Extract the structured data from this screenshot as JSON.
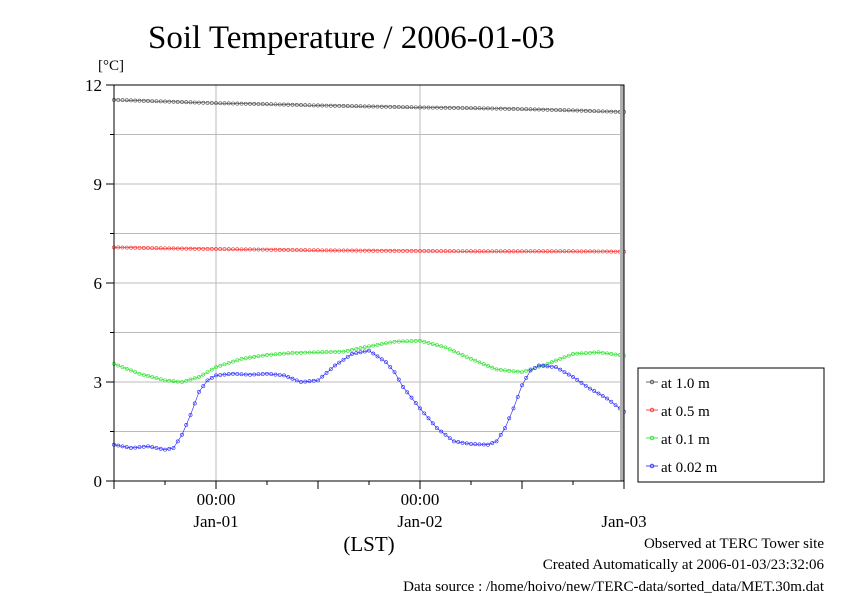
{
  "chart_data": {
    "type": "line",
    "title": "Soil Temperature / 2006-01-03",
    "ylabel": "[°C]",
    "xlabel": "(LST)",
    "ylim": [
      0,
      12
    ],
    "y_ticks": [
      0,
      3,
      6,
      9,
      12
    ],
    "x_time_labels": [
      "00:00",
      "00:00"
    ],
    "x_day_labels": [
      "Jan-01",
      "Jan-02",
      "Jan-03"
    ],
    "x_unit_note": "x values are hours from 2005-12-31 12:00 LST",
    "xlim": [
      0,
      60
    ],
    "grid": true,
    "legend_position": "right",
    "series": [
      {
        "name": "at 1.0 m",
        "color": "#444444",
        "x": [
          0,
          6,
          12,
          18,
          24,
          30,
          36,
          42,
          48,
          54,
          60
        ],
        "values": [
          11.55,
          11.5,
          11.45,
          11.42,
          11.38,
          11.35,
          11.32,
          11.3,
          11.27,
          11.23,
          11.18
        ]
      },
      {
        "name": "at 0.5 m",
        "color": "#ff2020",
        "x": [
          0,
          6,
          12,
          18,
          24,
          30,
          36,
          42,
          48,
          54,
          60
        ],
        "values": [
          7.08,
          7.05,
          7.03,
          7.01,
          6.99,
          6.98,
          6.97,
          6.96,
          6.96,
          6.96,
          6.95
        ]
      },
      {
        "name": "at 0.1 m",
        "color": "#20e020",
        "x": [
          0,
          3,
          6,
          8,
          10,
          12,
          15,
          18,
          21,
          24,
          27,
          30,
          33,
          36,
          39,
          42,
          45,
          48,
          51,
          54,
          57,
          60
        ],
        "values": [
          3.55,
          3.25,
          3.05,
          3.0,
          3.15,
          3.45,
          3.7,
          3.82,
          3.88,
          3.9,
          3.92,
          4.08,
          4.22,
          4.25,
          4.05,
          3.7,
          3.38,
          3.3,
          3.55,
          3.85,
          3.9,
          3.8
        ]
      },
      {
        "name": "at 0.02 m",
        "color": "#2020ff",
        "x": [
          0,
          2,
          4,
          6,
          7,
          8,
          9,
          10,
          11,
          12,
          14,
          16,
          18,
          20,
          22,
          24,
          26,
          28,
          30,
          32,
          33,
          34,
          36,
          38,
          40,
          42,
          44,
          45,
          46,
          47,
          48,
          49,
          50,
          52,
          54,
          56,
          58,
          60
        ],
        "values": [
          1.1,
          1.0,
          1.05,
          0.95,
          1.0,
          1.4,
          2.0,
          2.7,
          3.05,
          3.2,
          3.25,
          3.22,
          3.25,
          3.2,
          3.0,
          3.05,
          3.5,
          3.85,
          3.95,
          3.6,
          3.3,
          2.85,
          2.2,
          1.6,
          1.2,
          1.12,
          1.1,
          1.2,
          1.6,
          2.2,
          2.9,
          3.35,
          3.5,
          3.45,
          3.15,
          2.8,
          2.5,
          2.1
        ]
      }
    ]
  },
  "footer": {
    "observed": "Observed at TERC Tower site",
    "created": "Created Automatically at 2006-01-03/23:32:06",
    "source": "Data source : /home/hoivo/new/TERC-data/sorted_data/MET.30m.dat"
  }
}
